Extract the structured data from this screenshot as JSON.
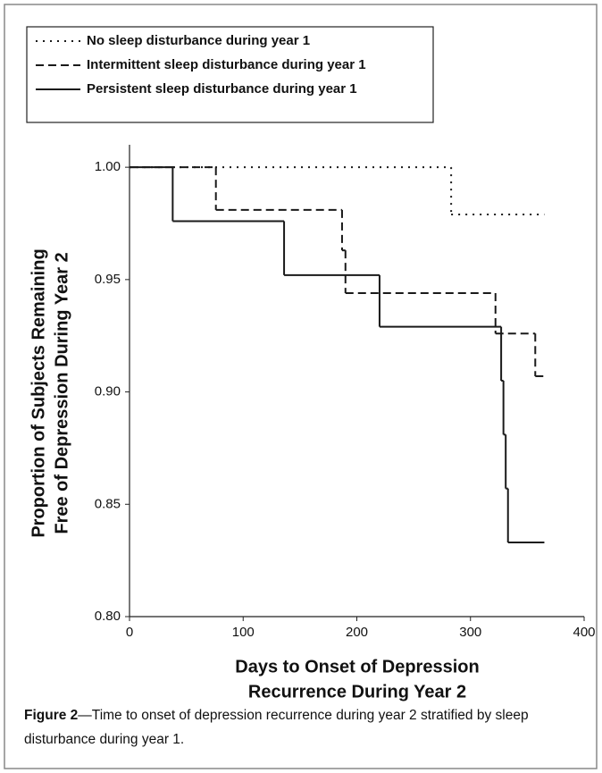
{
  "chart_data": {
    "type": "step",
    "x_label_lines": [
      "Days to Onset of Depression",
      "Recurrence During Year 2"
    ],
    "y_label_lines": [
      "Proportion of Subjects Remaining",
      "Free of Depression During Year 2"
    ],
    "xlim": [
      0,
      400
    ],
    "xticks": [
      0,
      100,
      200,
      300,
      400
    ],
    "ylim": [
      0.8,
      1.01
    ],
    "yticks": [
      {
        "value": 0.8,
        "label": "0.80"
      },
      {
        "value": 0.85,
        "label": "0.85"
      },
      {
        "value": 0.9,
        "label": "0.90"
      },
      {
        "value": 0.95,
        "label": "0.95"
      },
      {
        "value": 1.0,
        "label": "1.00"
      }
    ],
    "legend": "top-left",
    "series": [
      {
        "name": "No sleep disturbance during year 1",
        "color": "#1a1a1a",
        "dash": "dotted",
        "x": [
          0,
          283,
          365
        ],
        "values": [
          1.0,
          0.979,
          0.979
        ]
      },
      {
        "name": "Intermittent sleep disturbance during year 1",
        "color": "#1a1a1a",
        "dash": "dashed",
        "x": [
          0,
          76,
          187,
          190,
          322,
          357,
          365
        ],
        "values": [
          1.0,
          0.981,
          0.963,
          0.944,
          0.926,
          0.907,
          0.907
        ]
      },
      {
        "name": "Persistent sleep disturbance during year 1",
        "color": "#1a1a1a",
        "dash": "solid",
        "x": [
          0,
          38,
          136,
          220,
          327,
          329,
          331,
          333,
          365
        ],
        "values": [
          1.0,
          0.976,
          0.952,
          0.929,
          0.905,
          0.881,
          0.857,
          0.833,
          0.833
        ]
      }
    ],
    "caption_label": "Figure 2",
    "caption_text": "—Time to onset of depression recurrence during year 2 stratified by sleep disturbance during year 1."
  }
}
